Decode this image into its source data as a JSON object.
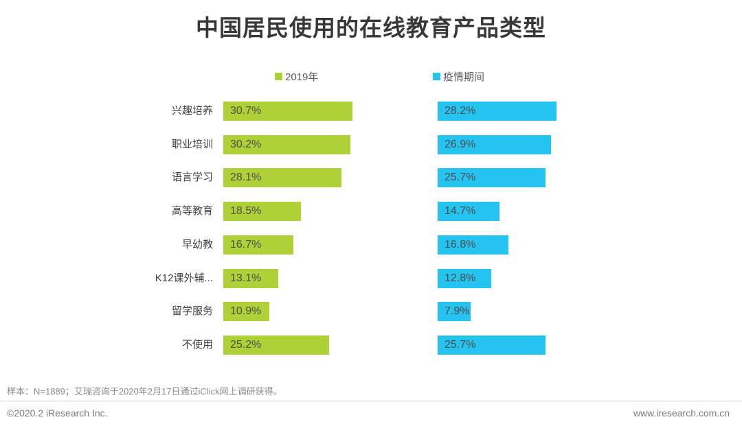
{
  "title": "中国居民使用的在线教育产品类型",
  "legend": {
    "series1_label": "2019年",
    "series2_label": "疫情期间"
  },
  "colors": {
    "series1": "#AFD138",
    "series2": "#25C3EF",
    "title_text": "#383838",
    "value_text": "#4D4D4D"
  },
  "chart_data": {
    "type": "bar",
    "orientation": "horizontal",
    "value_suffix": "%",
    "xlim": [
      0,
      32
    ],
    "grid": false,
    "legend_position": "top",
    "categories": [
      "兴趣培养",
      "职业培训",
      "语言学习",
      "高等教育",
      "早幼教",
      "K12课外辅...",
      "留学服务",
      "不使用"
    ],
    "series": [
      {
        "name": "2019年",
        "color": "#AFD138",
        "values": [
          30.7,
          30.2,
          28.1,
          18.5,
          16.7,
          13.1,
          10.9,
          25.2
        ]
      },
      {
        "name": "疫情期间",
        "color": "#25C3EF",
        "values": [
          28.2,
          26.9,
          25.7,
          14.7,
          16.8,
          12.8,
          7.9,
          25.7
        ]
      }
    ]
  },
  "footer": {
    "note": "样本：N=1889；艾瑞咨询于2020年2月17日通过iClick网上调研获得。",
    "copyright": "©2020.2 iResearch Inc.",
    "website": "www.iresearch.com.cn"
  }
}
